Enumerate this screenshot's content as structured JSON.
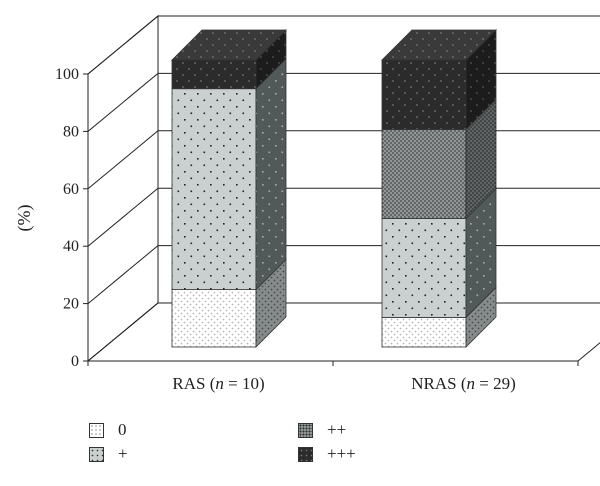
{
  "chart_data": {
    "type": "bar",
    "stacked": true,
    "three_d": true,
    "ylabel": "(%)",
    "ylim": [
      0,
      100
    ],
    "yticks": [
      0,
      20,
      40,
      60,
      80,
      100
    ],
    "categories": [
      {
        "prefix": "RAS (",
        "n": "n",
        "eq": " = 10)"
      },
      {
        "prefix": "NRAS (",
        "n": "n",
        "eq": " = 29)"
      }
    ],
    "series": [
      {
        "name": "0",
        "values": [
          20,
          10.3
        ]
      },
      {
        "name": "+",
        "values": [
          70,
          34.5
        ]
      },
      {
        "name": "++",
        "values": [
          0,
          31.0
        ]
      },
      {
        "name": "+++",
        "values": [
          10,
          24.2
        ]
      }
    ],
    "grid": true,
    "legend_position": "bottom"
  }
}
